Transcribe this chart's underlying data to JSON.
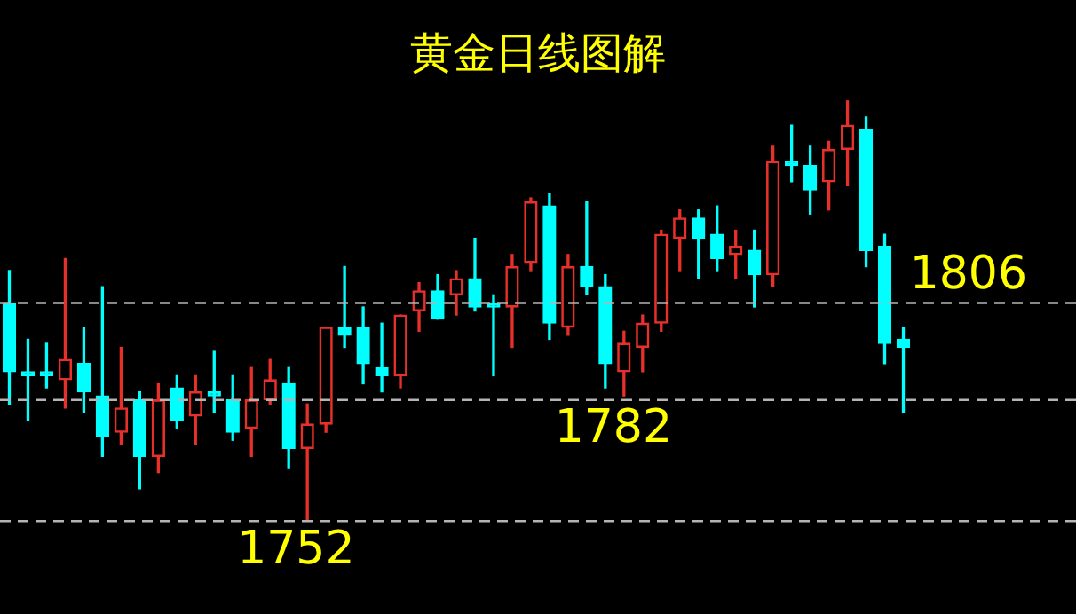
{
  "chart_data": {
    "type": "candlestick",
    "title": "黄金日线图解",
    "categories": [
      null,
      null,
      null,
      null,
      null,
      null,
      null,
      null,
      null,
      null,
      null,
      null,
      null,
      null,
      null,
      null,
      null,
      null,
      null,
      null,
      null,
      null,
      null,
      null,
      null,
      null,
      null,
      null,
      null,
      null,
      null,
      null,
      null,
      null,
      null,
      null,
      null,
      null,
      null,
      null,
      null,
      null,
      null,
      null,
      null,
      null,
      null,
      null,
      null
    ],
    "ohlc": [
      [
        1806,
        1814,
        1781,
        1789
      ],
      [
        1789,
        1797,
        1777,
        1788
      ],
      [
        1789,
        1796,
        1785,
        1788
      ],
      [
        1787,
        1817,
        1780,
        1792
      ],
      [
        1791,
        1800,
        1779,
        1784
      ],
      [
        1783,
        1810,
        1768,
        1773
      ],
      [
        1774,
        1795,
        1771,
        1780
      ],
      [
        1782,
        1784,
        1760,
        1768
      ],
      [
        1768,
        1786,
        1764,
        1782
      ],
      [
        1785,
        1788,
        1775,
        1777
      ],
      [
        1778,
        1788,
        1771,
        1784
      ],
      [
        1784,
        1794,
        1779,
        1783
      ],
      [
        1782,
        1788,
        1772,
        1774
      ],
      [
        1775,
        1790,
        1768,
        1782
      ],
      [
        1782,
        1792,
        1781,
        1787
      ],
      [
        1786,
        1790,
        1765,
        1770
      ],
      [
        1770,
        1781,
        1752,
        1776
      ],
      [
        1776,
        1800,
        1774,
        1800
      ],
      [
        1800,
        1815,
        1795,
        1798
      ],
      [
        1800,
        1805,
        1786,
        1791
      ],
      [
        1790,
        1801,
        1784,
        1788
      ],
      [
        1788,
        1803,
        1785,
        1803
      ],
      [
        1804,
        1811,
        1799,
        1809
      ],
      [
        1809,
        1813,
        1802,
        1802
      ],
      [
        1808,
        1814,
        1803,
        1812
      ],
      [
        1812,
        1822,
        1804,
        1805
      ],
      [
        1806,
        1808,
        1788,
        1805
      ],
      [
        1805,
        1818,
        1795,
        1815
      ],
      [
        1816,
        1832,
        1814,
        1831
      ],
      [
        1830,
        1833,
        1797,
        1801
      ],
      [
        1800,
        1818,
        1798,
        1815
      ],
      [
        1815,
        1831,
        1808,
        1810
      ],
      [
        1810,
        1813,
        1785,
        1791
      ],
      [
        1789,
        1799,
        1783,
        1796
      ],
      [
        1795,
        1803,
        1789,
        1801
      ],
      [
        1801,
        1824,
        1799,
        1823
      ],
      [
        1822,
        1829,
        1814,
        1827
      ],
      [
        1827,
        1829,
        1812,
        1822
      ],
      [
        1823,
        1830,
        1814,
        1817
      ],
      [
        1818,
        1824,
        1812,
        1820
      ],
      [
        1819,
        1824,
        1805,
        1813
      ],
      [
        1813,
        1845,
        1810,
        1841
      ],
      [
        1841,
        1850,
        1836,
        1840
      ],
      [
        1840,
        1845,
        1828,
        1834
      ],
      [
        1836,
        1846,
        1829,
        1844
      ],
      [
        1844,
        1856,
        1835,
        1850
      ],
      [
        1849,
        1852,
        1815,
        1819
      ],
      [
        1820,
        1823,
        1791,
        1796
      ],
      [
        1797,
        1800,
        1779,
        1795
      ]
    ],
    "colors": [
      "#00ffff",
      "#00ffff",
      "#00ffff",
      "#e8302a",
      "#00ffff",
      "#00ffff",
      "#e8302a",
      "#00ffff",
      "#e8302a",
      "#00ffff",
      "#e8302a",
      "#00ffff",
      "#00ffff",
      "#e8302a",
      "#e8302a",
      "#00ffff",
      "#e8302a",
      "#e8302a",
      "#00ffff",
      "#00ffff",
      "#00ffff",
      "#e8302a",
      "#e8302a",
      "#00ffff",
      "#e8302a",
      "#00ffff",
      "#00ffff",
      "#e8302a",
      "#e8302a",
      "#00ffff",
      "#e8302a",
      "#00ffff",
      "#00ffff",
      "#e8302a",
      "#e8302a",
      "#e8302a",
      "#e8302a",
      "#00ffff",
      "#00ffff",
      "#e8302a",
      "#00ffff",
      "#e8302a",
      "#00ffff",
      "#00ffff",
      "#e8302a",
      "#e8302a",
      "#00ffff",
      "#00ffff",
      "#00ffff"
    ],
    "ylim": [
      1729,
      1881
    ],
    "ref_lines": [
      {
        "axis": "y",
        "value": 1752,
        "label": "1752",
        "color": "#b4b4b4",
        "line_style": "dashed"
      },
      {
        "axis": "y",
        "value": 1782,
        "label": "1782",
        "color": "#b4b4b4",
        "line_style": "dashed"
      },
      {
        "axis": "y",
        "value": 1806,
        "label": "1806",
        "color": "#b4b4b4",
        "line_style": "dashed"
      }
    ]
  }
}
